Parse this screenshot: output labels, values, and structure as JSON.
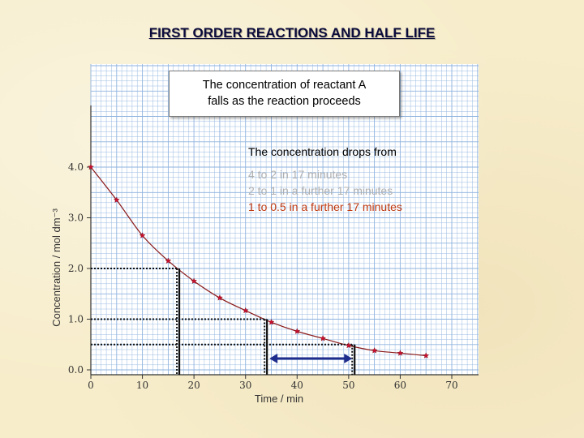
{
  "slide": {
    "title": "FIRST ORDER REACTIONS AND HALF LIFE",
    "callout": {
      "line1": "The concentration of reactant A",
      "line2": "falls as the reaction proceeds"
    },
    "explanation": {
      "heading": "The concentration drops from",
      "lines": [
        "4 to 2 in 17 minutes",
        "2 to 1 in a further 17 minutes",
        "1 to 0.5 in a further  17 minutes"
      ],
      "colors": {
        "faded": "#b0b0b0",
        "highlight": "#c03a10"
      }
    }
  },
  "chart_data": {
    "type": "scatter",
    "xlabel": "Time / min",
    "ylabel": "Concentration / mol dm⁻³",
    "xlim": [
      0,
      70
    ],
    "ylim": [
      0,
      5.3
    ],
    "x_ticks": [
      "0",
      "10",
      "20",
      "30",
      "40",
      "50",
      "60",
      "70"
    ],
    "y_ticks": [
      "0.0",
      "1.0",
      "2.0",
      "3.0",
      "4.0"
    ],
    "grid": true,
    "colors": {
      "points": "#c8102e",
      "curve": "#8b1a1a",
      "grid": "#8fb3df",
      "arrow": "#1f2d8c"
    },
    "series": [
      {
        "x": [
          0,
          5,
          10,
          15,
          20,
          25,
          30,
          35,
          40,
          45,
          50,
          55,
          60,
          65
        ],
        "y": [
          4.0,
          3.35,
          2.65,
          2.15,
          1.75,
          1.42,
          1.17,
          0.94,
          0.76,
          0.62,
          0.48,
          0.38,
          0.33,
          0.28
        ]
      }
    ],
    "half_life_markers": [
      {
        "t": 17,
        "c": 2.0
      },
      {
        "t": 34,
        "c": 1.0
      },
      {
        "t": 51,
        "c": 0.5
      }
    ],
    "arrow": {
      "from": 34,
      "to": 51
    }
  }
}
